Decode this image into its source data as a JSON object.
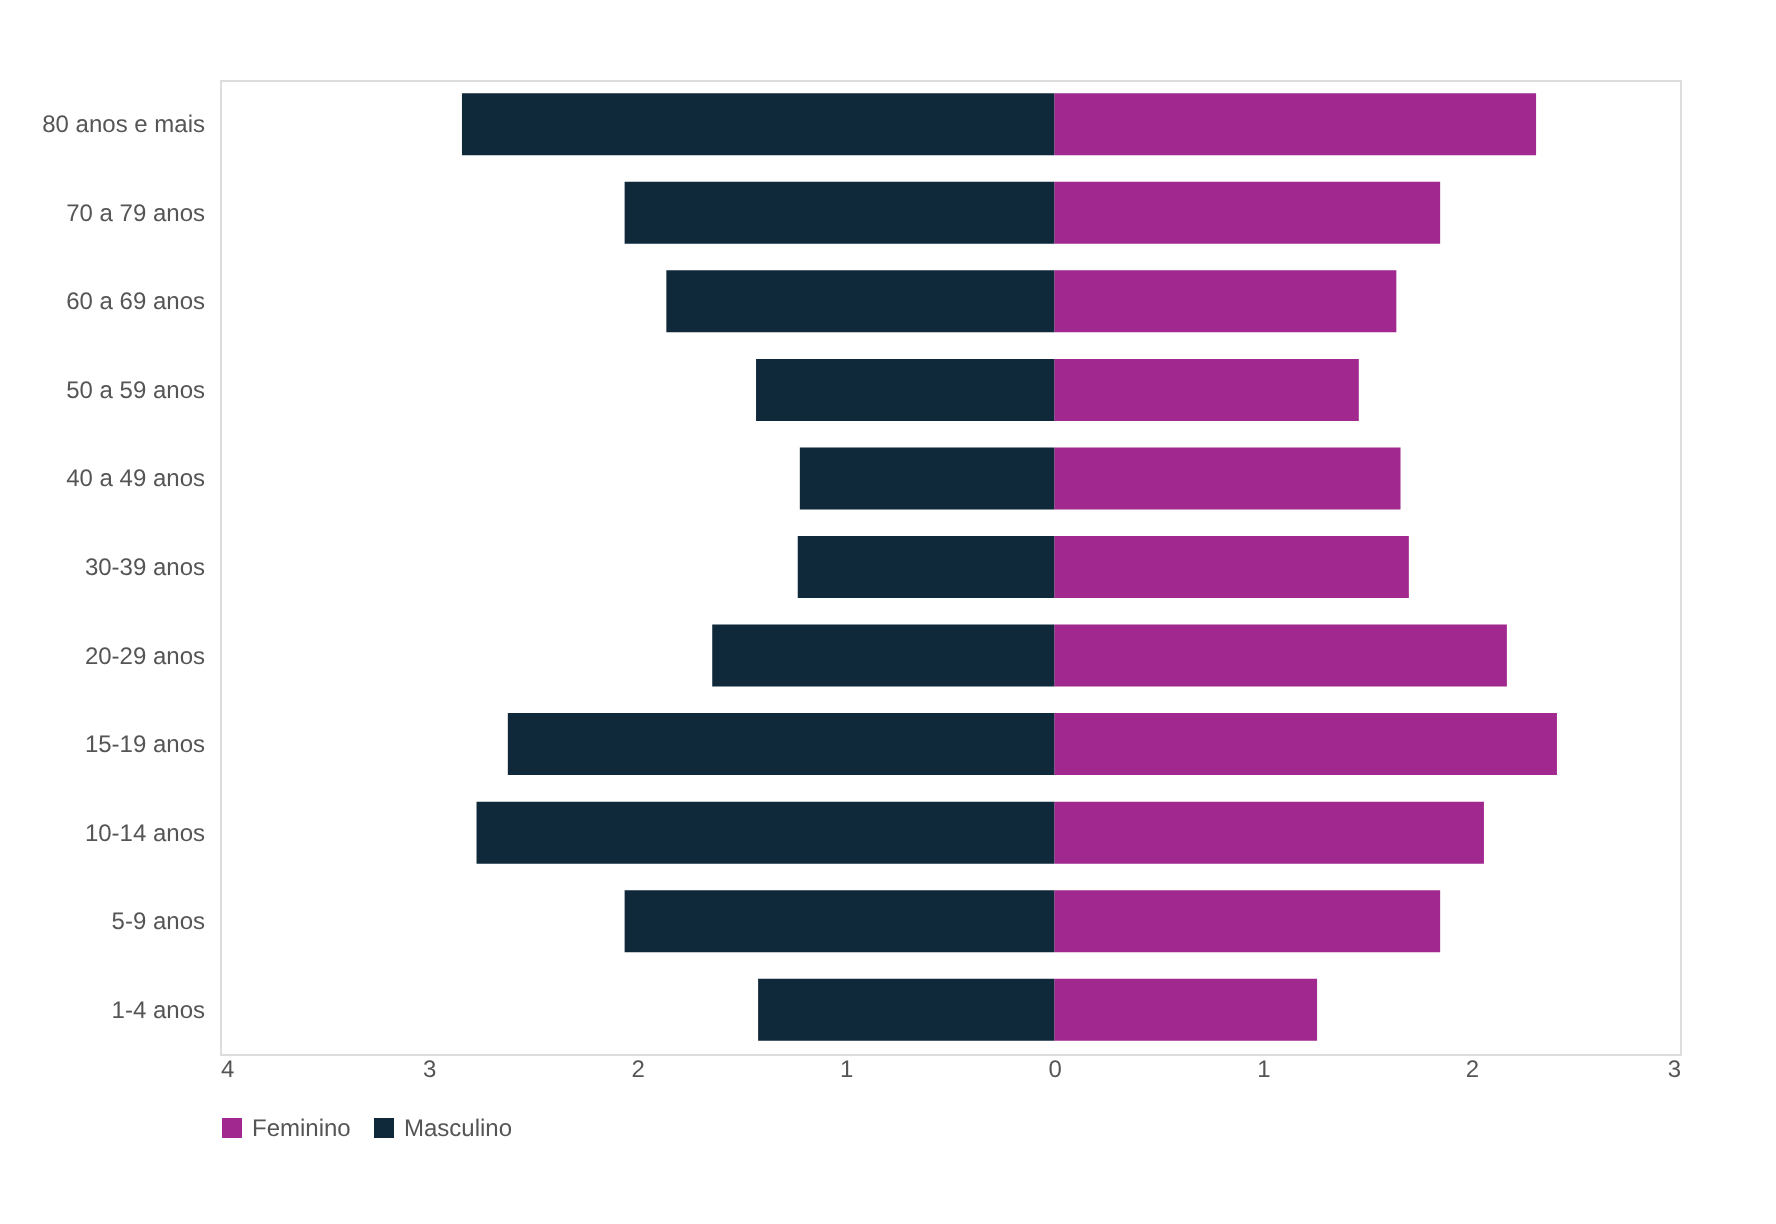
{
  "chart_data": {
    "type": "bar",
    "orientation": "horizontal",
    "stacked": true,
    "categories": [
      "80 anos e mais",
      "70 a 79 anos",
      "60 a 69 anos",
      "50 a 59 anos",
      "40 a 49 anos",
      "30-39 anos",
      "20-29 anos",
      "15-19 anos",
      "10-14 anos",
      "5-9 anos",
      "1-4 anos"
    ],
    "series": [
      {
        "name": "Feminino",
        "color": "#a0288f",
        "values": [
          2.31,
          1.85,
          1.64,
          1.46,
          1.66,
          1.7,
          2.17,
          2.41,
          2.06,
          1.85,
          1.26
        ]
      },
      {
        "name": "Masculino",
        "color": "#10293a",
        "values": [
          -2.84,
          -2.06,
          -1.86,
          -1.43,
          -1.22,
          -1.23,
          -1.64,
          -2.62,
          -2.77,
          -2.06,
          -1.42
        ]
      }
    ],
    "xlim": [
      -4,
      3
    ],
    "xticks": [
      {
        "value": -4,
        "label": "4"
      },
      {
        "value": -3,
        "label": "3"
      },
      {
        "value": -2,
        "label": "2"
      },
      {
        "value": -1,
        "label": "1"
      },
      0,
      1,
      2,
      3
    ],
    "grid": false,
    "legend": "bottom"
  }
}
